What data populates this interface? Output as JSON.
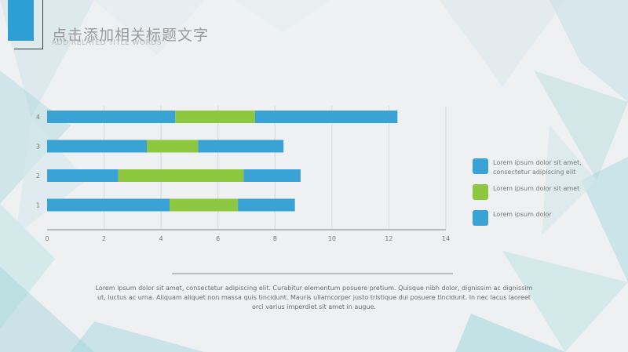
{
  "header": {
    "title": "点击添加相关标题文字",
    "subtitle": "ADD RELATED TITLE WORDS"
  },
  "colors": {
    "accent": "#2e9fd2",
    "series_blue": "#3aa3d6",
    "series_green": "#8dc63f"
  },
  "chart_data": {
    "type": "bar",
    "orientation": "horizontal",
    "stacked": true,
    "categories": [
      "1",
      "2",
      "3",
      "4"
    ],
    "series": [
      {
        "values": [
          4.3,
          2.5,
          3.5,
          4.5
        ],
        "color": "#3aa3d6"
      },
      {
        "values": [
          2.4,
          4.4,
          1.8,
          2.8
        ],
        "color": "#8dc63f"
      },
      {
        "values": [
          2.0,
          2.0,
          3.0,
          5.0
        ],
        "color": "#3aa3d6"
      }
    ],
    "xlim": [
      0,
      14
    ],
    "xticks": [
      "0",
      "2",
      "4",
      "6",
      "8",
      "10",
      "12",
      "14"
    ],
    "grid": "vertical",
    "legend_position": "right"
  },
  "legend": {
    "items": [
      {
        "label": "Lorem ipsum dolor sit amet, consectetur adipiscing elit",
        "color": "#3aa3d6"
      },
      {
        "label": "Lorem ipsum dolor sit amet",
        "color": "#8dc63f"
      },
      {
        "label": "Lorem ipsum dolor",
        "color": "#3aa3d6"
      }
    ]
  },
  "body": {
    "text": "Lorem ipsum dolor sit amet, consectetur adipiscing elit. Curabitur elementum posuere pretium. Quisque nibh dolor, dignissim ac dignissim ut, luctus ac urna. Aliquam aliquet non massa quis tincidunt. Mauris ullamcorper justo tristique dui posuere tincidunt. In nec lacus laoreet orci varius imperdiet sit amet in augue."
  }
}
